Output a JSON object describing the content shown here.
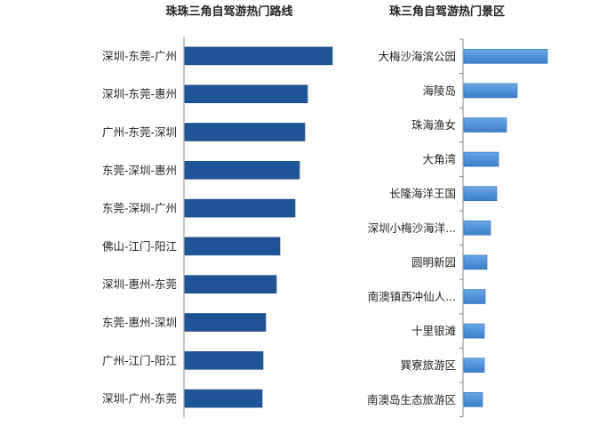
{
  "chart_data": [
    {
      "type": "bar",
      "orientation": "horizontal",
      "title": "珠珠三角自驾游热门路线",
      "categories": [
        "深圳-东莞-广州",
        "深圳-东莞-惠州",
        "广州-东莞-深圳",
        "东莞-深圳-惠州",
        "东莞-深圳-广州",
        "佛山-江门-阳江",
        "深圳-惠州-东莞",
        "东莞-惠州-深圳",
        "广州-江门-阳江",
        "深圳-广州-东莞"
      ],
      "values": [
        166,
        138,
        135,
        129,
        124,
        107,
        103,
        91,
        88,
        87
      ],
      "xlim": [
        0,
        180
      ],
      "value_units": "relative (no axis shown)",
      "color": "#1f5597",
      "grid": false
    },
    {
      "type": "bar",
      "orientation": "horizontal",
      "title": "珠三角自驾游热门景区",
      "categories": [
        "大梅沙海滨公园",
        "海陵岛",
        "珠海渔女",
        "大角湾",
        "长隆海洋王国",
        "深圳小梅沙海洋...",
        "圆明新园",
        "南澳镇西冲仙人...",
        "十里银滩",
        "巽寮旅游区",
        "南澳岛生态旅游区"
      ],
      "values": [
        94,
        60,
        48,
        39,
        37,
        30,
        26,
        24,
        23,
        23,
        21
      ],
      "xlim": [
        0,
        180
      ],
      "value_units": "relative (no axis shown)",
      "color": "#4a8fd6",
      "grid": false
    }
  ]
}
